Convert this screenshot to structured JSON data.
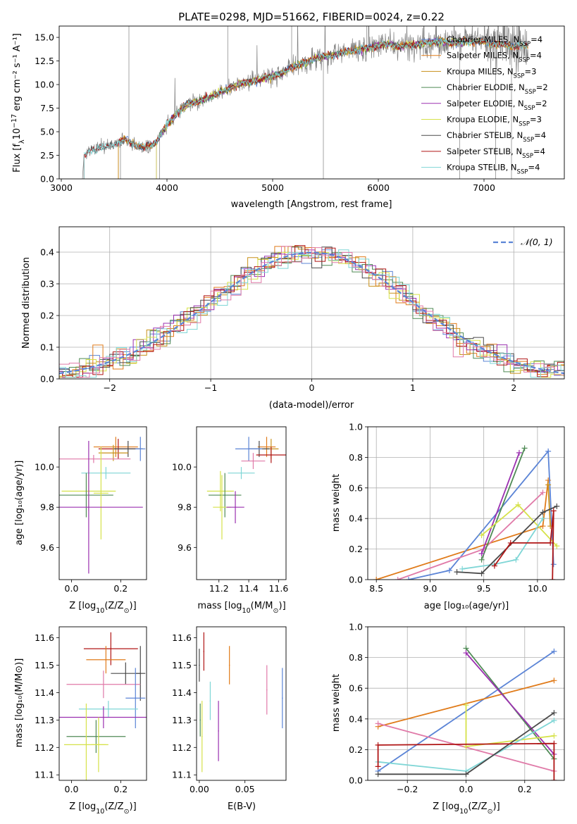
{
  "colors": {
    "chabrier_miles": "#5b84d6",
    "salpeter_miles": "#e07b1a",
    "kroupa_miles": "#c8911a",
    "chabrier_elodie": "#4f8a55",
    "salpeter_elodie": "#9b30b0",
    "kroupa_elodie": "#d6e24a",
    "chabrier_stelib": "#4a4a4a",
    "salpeter_stelib": "#b01515",
    "kroupa_stelib": "#7fd6d6",
    "extra_pink": "#e07aa8",
    "data": "#7f7f7f",
    "normal": "#5b84d6"
  },
  "chart_data": [
    {
      "type": "line",
      "title": "PLATE=0298, MJD=51662, FIBERID=0024, z=0.22",
      "xlabel": "wavelength [Angstrom, rest frame]",
      "ylabel_pre": "Flux [f",
      "ylabel_sub": "λ",
      "ylabel_mid": "10",
      "ylabel_sup": "−17",
      "ylabel_post": " erg cm⁻² s⁻¹ A⁻¹]",
      "xlim": [
        2980,
        7760
      ],
      "ylim": [
        0,
        16.2
      ],
      "xticks": [
        3000,
        4000,
        5000,
        6000,
        7000
      ],
      "yticks": [
        0.0,
        2.5,
        5.0,
        7.5,
        10.0,
        12.5,
        15.0
      ],
      "legend_position": "right",
      "legend": [
        {
          "pre": "Chabrier MILES, N",
          "sub": "SSP",
          "post": "=4",
          "color": "chabrier_miles"
        },
        {
          "pre": "Salpeter MILES, N",
          "sub": "SSP",
          "post": "=4",
          "color": "salpeter_miles"
        },
        {
          "pre": "Kroupa MILES, N",
          "sub": "SSP",
          "post": "=3",
          "color": "kroupa_miles"
        },
        {
          "pre": "Chabrier ELODIE, N",
          "sub": "SSP",
          "post": "=2",
          "color": "chabrier_elodie"
        },
        {
          "pre": "Salpeter ELODIE, N",
          "sub": "SSP",
          "post": "=2",
          "color": "salpeter_elodie"
        },
        {
          "pre": "Kroupa ELODIE, N",
          "sub": "SSP",
          "post": "=3",
          "color": "kroupa_elodie"
        },
        {
          "pre": "Chabrier STELIB, N",
          "sub": "SSP",
          "post": "=4",
          "color": "chabrier_stelib"
        },
        {
          "pre": "Salpeter STELIB, N",
          "sub": "SSP",
          "post": "=4",
          "color": "salpeter_stelib"
        },
        {
          "pre": "Kroupa STELIB, N",
          "sub": "SSP",
          "post": "=4",
          "color": "kroupa_stelib"
        }
      ],
      "continuum": {
        "x": [
          3200,
          3215,
          3300,
          3400,
          3500,
          3600,
          3700,
          3800,
          3900,
          4000,
          4100,
          4200,
          4300,
          4400,
          4500,
          4600,
          4700,
          4800,
          4900,
          5000,
          5100,
          5200,
          5300,
          5400,
          5500,
          5600,
          5700,
          5800,
          5900,
          6000,
          6100,
          6200,
          6300,
          6400,
          6500,
          6600,
          6700,
          6800,
          6900,
          7000,
          7100,
          7200,
          7300,
          7420
        ],
        "y": [
          0,
          2.5,
          3.1,
          3.3,
          3.6,
          4.2,
          3.6,
          3.3,
          3.9,
          5.8,
          7.0,
          8.0,
          8.2,
          8.6,
          9.2,
          9.6,
          10.1,
          10.3,
          10.6,
          10.9,
          11.2,
          12.0,
          12.2,
          12.8,
          13.0,
          13.2,
          13.5,
          13.7,
          13.9,
          14.1,
          14.3,
          14.0,
          14.2,
          14.3,
          14.5,
          14.6,
          14.4,
          14.5,
          14.6,
          14.5,
          14.3,
          14.2,
          14.1,
          14.0
        ]
      },
      "data_range": [
        3200,
        7420
      ]
    },
    {
      "type": "line",
      "xlabel": "(data-model)/error",
      "ylabel": "Normed distribution",
      "xlim": [
        -2.5,
        2.5
      ],
      "ylim": [
        0,
        0.48
      ],
      "xticks": [
        -2,
        -1,
        0,
        1,
        2
      ],
      "yticks": [
        0.0,
        0.1,
        0.2,
        0.3,
        0.4
      ],
      "grid": true,
      "legend_position": "top-right",
      "legend_label": "𝒩(0, 1)",
      "histogram_bin_width": 0.1
    },
    {
      "type": "scatter",
      "xlabel_pre": "Z [log",
      "xlabel_sub": "10",
      "xlabel_post": "(Z/Z",
      "xlabel_sun": "⊙",
      "xlabel_end": ")]",
      "ylabel": "age  [log₁₀(age/yr)]",
      "xlim": [
        -0.05,
        0.305
      ],
      "ylim": [
        9.44,
        10.2
      ],
      "xticks": [
        0.0,
        0.2
      ],
      "yticks": [
        9.6,
        9.8,
        10.0
      ],
      "points": [
        {
          "x": 0.18,
          "y": 10.1,
          "xerr": 0.09,
          "yerr": 0.05,
          "color": "salpeter_miles"
        },
        {
          "x": 0.19,
          "y": 10.09,
          "xerr": 0.08,
          "yerr": 0.05,
          "color": "salpeter_stelib"
        },
        {
          "x": 0.23,
          "y": 10.09,
          "xerr": 0.06,
          "yerr": 0.04,
          "color": "chabrier_stelib"
        },
        {
          "x": 0.28,
          "y": 10.09,
          "xerr": 0.02,
          "yerr": 0.06,
          "color": "chabrier_miles"
        },
        {
          "x": 0.17,
          "y": 10.07,
          "xerr": 0.06,
          "yerr": 0.04,
          "color": "kroupa_miles"
        },
        {
          "x": 0.09,
          "y": 10.04,
          "xerr": 0.15,
          "yerr": 0.02,
          "color": "extra_pink"
        },
        {
          "x": 0.14,
          "y": 9.97,
          "xerr": 0.1,
          "yerr": 0.03,
          "color": "kroupa_stelib"
        },
        {
          "x": 0.07,
          "y": 9.88,
          "xerr": 0.11,
          "yerr": 0.1,
          "color": "kroupa_elodie"
        },
        {
          "x": 0.06,
          "y": 9.86,
          "xerr": 0.11,
          "yerr": 0.11,
          "color": "chabrier_elodie"
        },
        {
          "x": 0.12,
          "y": 9.87,
          "xerr": 0.03,
          "yerr": 0.23,
          "color": "kroupa_elodie"
        },
        {
          "x": 0.07,
          "y": 9.8,
          "xerr": 0.22,
          "yerr": 0.33,
          "color": "salpeter_elodie"
        }
      ]
    },
    {
      "type": "scatter",
      "xlabel_pre": "mass [log",
      "xlabel_sub": "10",
      "xlabel_post": "(M/M",
      "xlabel_sun": "⊙",
      "xlabel_end": ")]",
      "ylabel": "",
      "xlim": [
        11.05,
        11.65
      ],
      "ylim": [
        9.44,
        10.2
      ],
      "xticks": [
        11.2,
        11.4,
        11.6
      ],
      "yticks": [
        9.6,
        9.8,
        10.0
      ],
      "points": [
        {
          "x": 11.52,
          "y": 10.1,
          "xerr": 0.06,
          "yerr": 0.05,
          "color": "salpeter_miles"
        },
        {
          "x": 11.55,
          "y": 10.09,
          "xerr": 0.05,
          "yerr": 0.05,
          "color": "kroupa_miles"
        },
        {
          "x": 11.47,
          "y": 10.09,
          "xerr": 0.07,
          "yerr": 0.04,
          "color": "chabrier_stelib"
        },
        {
          "x": 11.4,
          "y": 10.09,
          "xerr": 0.09,
          "yerr": 0.06,
          "color": "chabrier_miles"
        },
        {
          "x": 11.55,
          "y": 10.06,
          "xerr": 0.1,
          "yerr": 0.04,
          "color": "salpeter_stelib"
        },
        {
          "x": 11.43,
          "y": 10.03,
          "xerr": 0.08,
          "yerr": 0.04,
          "color": "extra_pink"
        },
        {
          "x": 11.35,
          "y": 9.97,
          "xerr": 0.09,
          "yerr": 0.03,
          "color": "kroupa_stelib"
        },
        {
          "x": 11.21,
          "y": 9.88,
          "xerr": 0.09,
          "yerr": 0.1,
          "color": "kroupa_elodie"
        },
        {
          "x": 11.24,
          "y": 9.86,
          "xerr": 0.11,
          "yerr": 0.11,
          "color": "chabrier_elodie"
        },
        {
          "x": 11.22,
          "y": 9.8,
          "xerr": 0.06,
          "yerr": 0.16,
          "color": "kroupa_elodie"
        },
        {
          "x": 11.31,
          "y": 9.8,
          "xerr": 0.06,
          "yerr": 0.08,
          "color": "salpeter_elodie"
        }
      ]
    },
    {
      "type": "line",
      "xlabel": "age  [log₁₀(age/yr)]",
      "ylabel": "mass weight",
      "xlim": [
        8.42,
        10.25
      ],
      "ylim": [
        0,
        1.0
      ],
      "xticks": [
        8.5,
        9.0,
        9.5,
        10.0
      ],
      "yticks": [
        0.0,
        0.2,
        0.4,
        0.6,
        0.8,
        1.0
      ],
      "grid": true,
      "series": [
        {
          "color": "salpeter_miles",
          "x": [
            8.5,
            10.05,
            10.1
          ],
          "y": [
            0.0,
            0.35,
            0.65
          ]
        },
        {
          "color": "chabrier_miles",
          "x": [
            8.8,
            9.18,
            10.1,
            10.15
          ],
          "y": [
            0.0,
            0.06,
            0.84,
            0.1
          ]
        },
        {
          "color": "kroupa_miles",
          "x": [
            10.1,
            10.12
          ],
          "y": [
            0.62,
            0.35
          ]
        },
        {
          "color": "extra_pink",
          "x": [
            8.7,
            9.5,
            10.05
          ],
          "y": [
            0.0,
            0.2,
            0.57
          ]
        },
        {
          "color": "chabrier_elodie",
          "x": [
            9.48,
            9.88
          ],
          "y": [
            0.13,
            0.86
          ]
        },
        {
          "color": "salpeter_elodie",
          "x": [
            9.48,
            9.83
          ],
          "y": [
            0.17,
            0.83
          ]
        },
        {
          "color": "kroupa_elodie",
          "x": [
            9.48,
            9.82,
            10.18
          ],
          "y": [
            0.29,
            0.49,
            0.22
          ]
        },
        {
          "color": "kroupa_stelib",
          "x": [
            9.3,
            9.6,
            9.8,
            10.05
          ],
          "y": [
            0.07,
            0.1,
            0.13,
            0.4
          ]
        },
        {
          "color": "chabrier_stelib",
          "x": [
            9.25,
            9.48,
            10.05,
            10.18
          ],
          "y": [
            0.05,
            0.04,
            0.44,
            0.48
          ]
        },
        {
          "color": "salpeter_stelib",
          "x": [
            9.6,
            9.75,
            10.12,
            10.15,
            10.14
          ],
          "y": [
            0.09,
            0.24,
            0.24,
            0.45,
            0.0
          ]
        }
      ]
    },
    {
      "type": "scatter",
      "xlabel_pre": "Z [log",
      "xlabel_sub": "10",
      "xlabel_post": "(Z/Z",
      "xlabel_sun": "⊙",
      "xlabel_end": ")]",
      "ylabel": "mass [log₁₀(M/M⊙)]",
      "xlim": [
        -0.05,
        0.305
      ],
      "ylim": [
        11.08,
        11.64
      ],
      "xticks": [
        0.0,
        0.2
      ],
      "yticks": [
        11.1,
        11.2,
        11.3,
        11.4,
        11.5,
        11.6
      ],
      "points": [
        {
          "x": 0.16,
          "y": 11.56,
          "xerr": 0.11,
          "yerr": 0.06,
          "color": "salpeter_stelib"
        },
        {
          "x": 0.14,
          "y": 11.52,
          "xerr": 0.08,
          "yerr": 0.05,
          "color": "salpeter_miles"
        },
        {
          "x": 0.22,
          "y": 11.47,
          "xerr": 0.06,
          "yerr": 0.04,
          "color": "chabrier_stelib"
        },
        {
          "x": 0.28,
          "y": 11.47,
          "xerr": 0.02,
          "yerr": 0.1,
          "color": "chabrier_stelib"
        },
        {
          "x": 0.13,
          "y": 11.43,
          "xerr": 0.15,
          "yerr": 0.05,
          "color": "extra_pink"
        },
        {
          "x": 0.26,
          "y": 11.38,
          "xerr": 0.04,
          "yerr": 0.11,
          "color": "chabrier_miles"
        },
        {
          "x": 0.15,
          "y": 11.34,
          "xerr": 0.12,
          "yerr": 0.03,
          "color": "kroupa_stelib"
        },
        {
          "x": 0.13,
          "y": 11.31,
          "xerr": 0.25,
          "yerr": 0.04,
          "color": "salpeter_elodie"
        },
        {
          "x": 0.1,
          "y": 11.24,
          "xerr": 0.12,
          "yerr": 0.06,
          "color": "chabrier_elodie"
        },
        {
          "x": 0.06,
          "y": 11.21,
          "xerr": 0.09,
          "yerr": 0.15,
          "color": "kroupa_elodie"
        },
        {
          "x": 0.11,
          "y": 11.21,
          "xerr": 0.03,
          "yerr": 0.1,
          "color": "kroupa_elodie"
        }
      ]
    },
    {
      "type": "scatter",
      "xlabel": "E(B-V)",
      "ylabel": "",
      "xlim": [
        -0.003,
        0.095
      ],
      "ylim": [
        11.08,
        11.64
      ],
      "xticks": [
        0.0,
        0.05
      ],
      "yticks": [
        11.1,
        11.2,
        11.3,
        11.4,
        11.5,
        11.6
      ],
      "points": [
        {
          "x": 0.0,
          "y": 11.5,
          "yerr": 0.06,
          "color": "chabrier_stelib"
        },
        {
          "x": 0.005,
          "y": 11.55,
          "yerr": 0.07,
          "color": "salpeter_stelib"
        },
        {
          "x": 0.033,
          "y": 11.5,
          "yerr": 0.07,
          "color": "salpeter_miles"
        },
        {
          "x": 0.001,
          "y": 11.3,
          "yerr": 0.06,
          "color": "chabrier_elodie"
        },
        {
          "x": 0.003,
          "y": 11.24,
          "yerr": 0.13,
          "color": "kroupa_elodie"
        },
        {
          "x": 0.012,
          "y": 11.37,
          "yerr": 0.07,
          "color": "kroupa_stelib"
        },
        {
          "x": 0.021,
          "y": 11.26,
          "yerr": 0.11,
          "color": "salpeter_elodie"
        },
        {
          "x": 0.074,
          "y": 11.41,
          "yerr": 0.09,
          "color": "extra_pink"
        },
        {
          "x": 0.091,
          "y": 11.38,
          "yerr": 0.11,
          "color": "chabrier_miles"
        }
      ]
    },
    {
      "type": "line",
      "xlabel_pre": "Z [log",
      "xlabel_sub": "10",
      "xlabel_post": "(Z/Z",
      "xlabel_sun": "⊙",
      "xlabel_end": ")]",
      "ylabel": "mass weight",
      "xlim": [
        -0.335,
        0.335
      ],
      "ylim": [
        0,
        1.0
      ],
      "xticks": [
        -0.2,
        0.0,
        0.2
      ],
      "yticks": [
        0.0,
        0.2,
        0.4,
        0.6,
        0.8,
        1.0
      ],
      "grid": true,
      "series": [
        {
          "color": "chabrier_miles",
          "x": [
            -0.3,
            0.3
          ],
          "y": [
            0.06,
            0.84
          ]
        },
        {
          "color": "salpeter_miles",
          "x": [
            -0.3,
            0.3
          ],
          "y": [
            0.35,
            0.65
          ]
        },
        {
          "color": "extra_pink",
          "x": [
            -0.3,
            0.3
          ],
          "y": [
            0.37,
            0.06
          ]
        },
        {
          "color": "chabrier_elodie",
          "x": [
            0.0,
            0.3
          ],
          "y": [
            0.86,
            0.14
          ]
        },
        {
          "color": "salpeter_elodie",
          "x": [
            0.0,
            0.3
          ],
          "y": [
            0.83,
            0.17
          ]
        },
        {
          "color": "kroupa_elodie",
          "x": [
            0.0,
            0.0,
            0.3
          ],
          "y": [
            0.49,
            0.22,
            0.29
          ]
        },
        {
          "color": "kroupa_stelib",
          "x": [
            -0.3,
            0.0,
            0.3
          ],
          "y": [
            0.12,
            0.06,
            0.39
          ]
        },
        {
          "color": "chabrier_stelib",
          "x": [
            -0.3,
            0.0,
            0.3
          ],
          "y": [
            0.04,
            0.04,
            0.44
          ]
        },
        {
          "color": "salpeter_stelib",
          "x": [
            -0.3,
            -0.3,
            0.3,
            0.3
          ],
          "y": [
            0.09,
            0.23,
            0.24,
            0.0
          ]
        }
      ]
    }
  ]
}
